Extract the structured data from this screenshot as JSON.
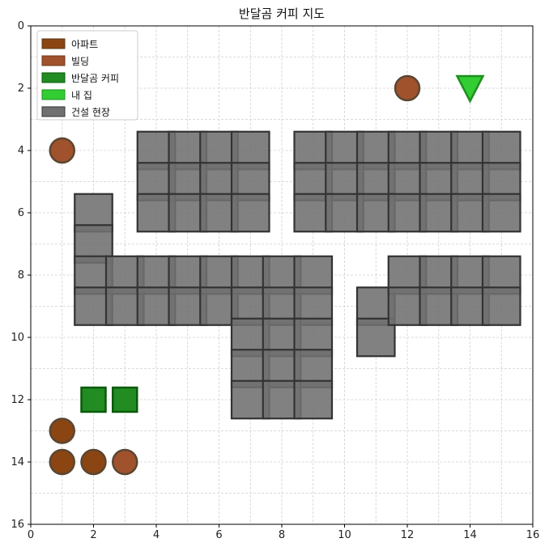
{
  "chart_data": {
    "type": "scatter",
    "title": "반달곰 커피 지도",
    "xlabel": "",
    "ylabel": "",
    "xlim": [
      0,
      16
    ],
    "ylim": [
      16,
      0
    ],
    "xticks": [
      0,
      2,
      4,
      6,
      8,
      10,
      12,
      14,
      16
    ],
    "yticks": [
      0,
      2,
      4,
      6,
      8,
      10,
      12,
      14,
      16
    ],
    "grid": true,
    "legend_position": "top-left",
    "legend": [
      {
        "label": "아파트",
        "color": "#8b4513",
        "edge": "#5a3a1a"
      },
      {
        "label": "빌딩",
        "color": "#a0522d",
        "edge": "#6b3a1e"
      },
      {
        "label": "반달곰 커피",
        "color": "#228b22",
        "edge": "#0a5a0a"
      },
      {
        "label": "내 집",
        "color": "#32cd32",
        "edge": "#1f8f1f"
      },
      {
        "label": "건설 현장",
        "color": "#707070",
        "edge": "#333333"
      }
    ],
    "series": [
      {
        "name": "아파트",
        "marker": "circle",
        "color": "#8b4513",
        "points": [
          [
            1,
            13
          ],
          [
            1,
            14
          ],
          [
            2,
            14
          ]
        ]
      },
      {
        "name": "빌딩",
        "marker": "circle",
        "color": "#a0522d",
        "points": [
          [
            12,
            2
          ],
          [
            1,
            4
          ],
          [
            3,
            14
          ]
        ]
      },
      {
        "name": "반달곰 커피",
        "marker": "square",
        "color": "#228b22",
        "points": [
          [
            2,
            12
          ],
          [
            3,
            12
          ]
        ]
      },
      {
        "name": "내 집",
        "marker": "triangle-down",
        "color": "#32cd32",
        "points": [
          [
            14,
            2
          ]
        ]
      },
      {
        "name": "건설 현장",
        "marker": "square-large",
        "color": "#707070",
        "points": [
          [
            4,
            4
          ],
          [
            5,
            4
          ],
          [
            6,
            4
          ],
          [
            7,
            4
          ],
          [
            4,
            5
          ],
          [
            5,
            5
          ],
          [
            6,
            5
          ],
          [
            7,
            5
          ],
          [
            4,
            6
          ],
          [
            5,
            6
          ],
          [
            6,
            6
          ],
          [
            7,
            6
          ],
          [
            9,
            4
          ],
          [
            10,
            4
          ],
          [
            11,
            4
          ],
          [
            12,
            4
          ],
          [
            13,
            4
          ],
          [
            14,
            4
          ],
          [
            15,
            4
          ],
          [
            9,
            5
          ],
          [
            10,
            5
          ],
          [
            11,
            5
          ],
          [
            12,
            5
          ],
          [
            13,
            5
          ],
          [
            14,
            5
          ],
          [
            15,
            5
          ],
          [
            9,
            6
          ],
          [
            10,
            6
          ],
          [
            11,
            6
          ],
          [
            12,
            6
          ],
          [
            13,
            6
          ],
          [
            14,
            6
          ],
          [
            15,
            6
          ],
          [
            2,
            6
          ],
          [
            2,
            7
          ],
          [
            2,
            8
          ],
          [
            2,
            9
          ],
          [
            3,
            8
          ],
          [
            3,
            9
          ],
          [
            4,
            8
          ],
          [
            4,
            9
          ],
          [
            5,
            8
          ],
          [
            5,
            9
          ],
          [
            6,
            8
          ],
          [
            6,
            9
          ],
          [
            7,
            8
          ],
          [
            7,
            9
          ],
          [
            8,
            8
          ],
          [
            8,
            9
          ],
          [
            9,
            8
          ],
          [
            9,
            9
          ],
          [
            7,
            10
          ],
          [
            8,
            10
          ],
          [
            9,
            10
          ],
          [
            7,
            11
          ],
          [
            8,
            11
          ],
          [
            9,
            11
          ],
          [
            7,
            12
          ],
          [
            8,
            12
          ],
          [
            9,
            12
          ],
          [
            11,
            9
          ],
          [
            11,
            10
          ],
          [
            12,
            8
          ],
          [
            12,
            9
          ],
          [
            13,
            8
          ],
          [
            13,
            9
          ],
          [
            14,
            8
          ],
          [
            14,
            9
          ],
          [
            15,
            8
          ],
          [
            15,
            9
          ]
        ]
      }
    ]
  }
}
